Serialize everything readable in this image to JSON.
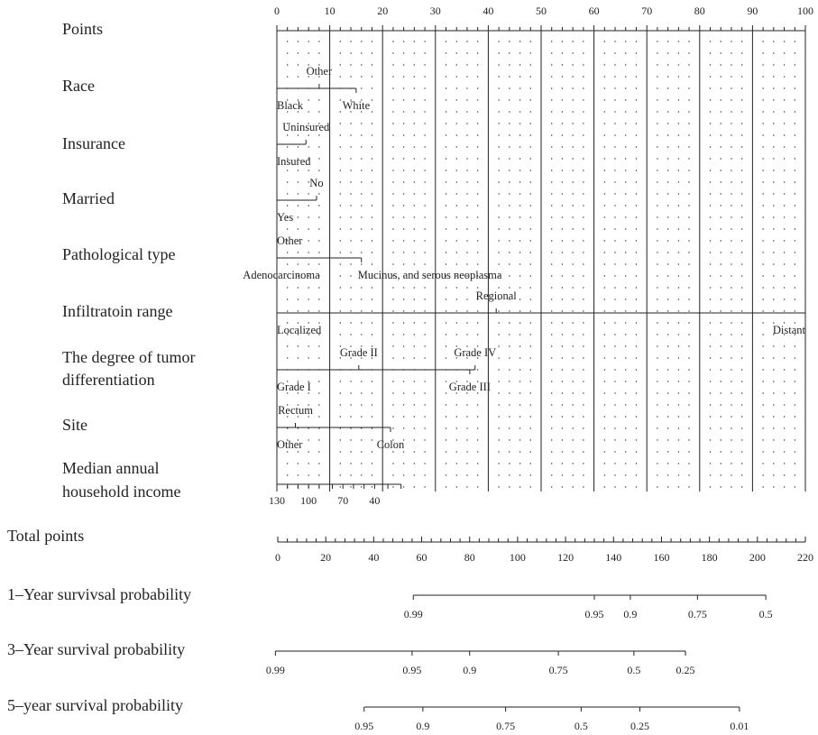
{
  "chart_data": {
    "type": "nomogram",
    "points_axis": {
      "label": "Points",
      "min": 0,
      "max": 100,
      "ticks": [
        0,
        10,
        20,
        30,
        40,
        50,
        60,
        70,
        80,
        90,
        100
      ]
    },
    "variables": [
      {
        "id": "race",
        "label": "Race",
        "levels": [
          {
            "name": "Black",
            "points": 0,
            "label_side": "below"
          },
          {
            "name": "Other",
            "points": 8,
            "label_side": "above"
          },
          {
            "name": "White",
            "points": 15,
            "label_side": "below"
          }
        ]
      },
      {
        "id": "insurance",
        "label": "Insurance",
        "levels": [
          {
            "name": "Insured",
            "points": 0,
            "label_side": "below"
          },
          {
            "name": "Uninsured",
            "points": 5.5,
            "label_side": "above"
          }
        ]
      },
      {
        "id": "married",
        "label": "Married",
        "levels": [
          {
            "name": "Yes",
            "points": 0,
            "label_side": "below"
          },
          {
            "name": "No",
            "points": 7.5,
            "label_side": "above"
          }
        ]
      },
      {
        "id": "pathological_type",
        "label": "Pathological type",
        "levels": [
          {
            "name": "Adenocarcinoma",
            "points": 0,
            "label_side": "below"
          },
          {
            "name": "Other",
            "points": 0,
            "label_side": "above"
          },
          {
            "name": "Mucinus, and serous neoplasma",
            "points": 16,
            "label_side": "below"
          }
        ]
      },
      {
        "id": "infiltration_range",
        "label": "Infiltratoin range",
        "levels": [
          {
            "name": "Localized",
            "points": 0,
            "label_side": "below"
          },
          {
            "name": "Regional",
            "points": 41.5,
            "label_side": "above"
          },
          {
            "name": "Distant",
            "points": 100,
            "label_side": "below"
          }
        ]
      },
      {
        "id": "tumor_differentiation",
        "label": "The degree of tumor differentiation",
        "label_lines": [
          "The degree of tumor",
          "differentiation"
        ],
        "levels": [
          {
            "name": "Grade I",
            "points": 0,
            "label_side": "below"
          },
          {
            "name": "Grade II",
            "points": 15.5,
            "label_side": "above"
          },
          {
            "name": "Grade III",
            "points": 36.5,
            "label_side": "below"
          },
          {
            "name": "Grade IV",
            "points": 37.5,
            "label_side": "above"
          }
        ]
      },
      {
        "id": "site",
        "label": "Site",
        "levels": [
          {
            "name": "Other",
            "points": 0,
            "label_side": "below"
          },
          {
            "name": "Rectum",
            "points": 3.5,
            "label_side": "above"
          },
          {
            "name": "Colon",
            "points": 21.5,
            "label_side": "below"
          }
        ]
      },
      {
        "id": "median_income",
        "label": "Median annual household income",
        "label_lines": [
          "Median annual",
          "household income"
        ],
        "continuous_axis": {
          "points_range": [
            0,
            23.5
          ],
          "labeled_ticks": [
            {
              "value": "130",
              "points": 0
            },
            {
              "value": "100",
              "points": 6
            },
            {
              "value": "70",
              "points": 12.5
            },
            {
              "value": "40",
              "points": 18.5
            }
          ],
          "minor_tick_points": [
            0,
            2,
            4,
            6,
            8,
            10.5,
            12.5,
            14.5,
            16.5,
            18.5,
            21,
            23.5
          ]
        }
      }
    ],
    "total_points_axis": {
      "label": "Total points",
      "min": 0,
      "max": 220,
      "ticks": [
        0,
        20,
        40,
        60,
        80,
        100,
        120,
        140,
        160,
        180,
        200,
        220
      ]
    },
    "probability_axes": [
      {
        "label": "1–Year survivsal probability",
        "range_total_points": [
          56.5,
          203.5
        ],
        "ticks": [
          {
            "label": "0.99",
            "total_points": 56.5
          },
          {
            "label": "0.95",
            "total_points": 132
          },
          {
            "label": "0.9",
            "total_points": 147
          },
          {
            "label": "0.75",
            "total_points": 175
          },
          {
            "label": "0.5",
            "total_points": 203.5
          }
        ]
      },
      {
        "label": "3–Year survival probability",
        "range_total_points": [
          -1,
          170
        ],
        "ticks": [
          {
            "label": "0.99",
            "total_points": -1
          },
          {
            "label": "0.95",
            "total_points": 56
          },
          {
            "label": "0.9",
            "total_points": 80
          },
          {
            "label": "0.75",
            "total_points": 117
          },
          {
            "label": "0.5",
            "total_points": 148.5
          },
          {
            "label": "0.25",
            "total_points": 170
          }
        ]
      },
      {
        "label": "5–year survival probability",
        "range_total_points": [
          36,
          192.5
        ],
        "ticks": [
          {
            "label": "0.95",
            "total_points": 36
          },
          {
            "label": "0.9",
            "total_points": 60.5
          },
          {
            "label": "0.75",
            "total_points": 95
          },
          {
            "label": "0.5",
            "total_points": 126.5
          },
          {
            "label": "0.25",
            "total_points": 151
          },
          {
            "label": "0.01",
            "total_points": 192.5
          }
        ]
      }
    ]
  }
}
